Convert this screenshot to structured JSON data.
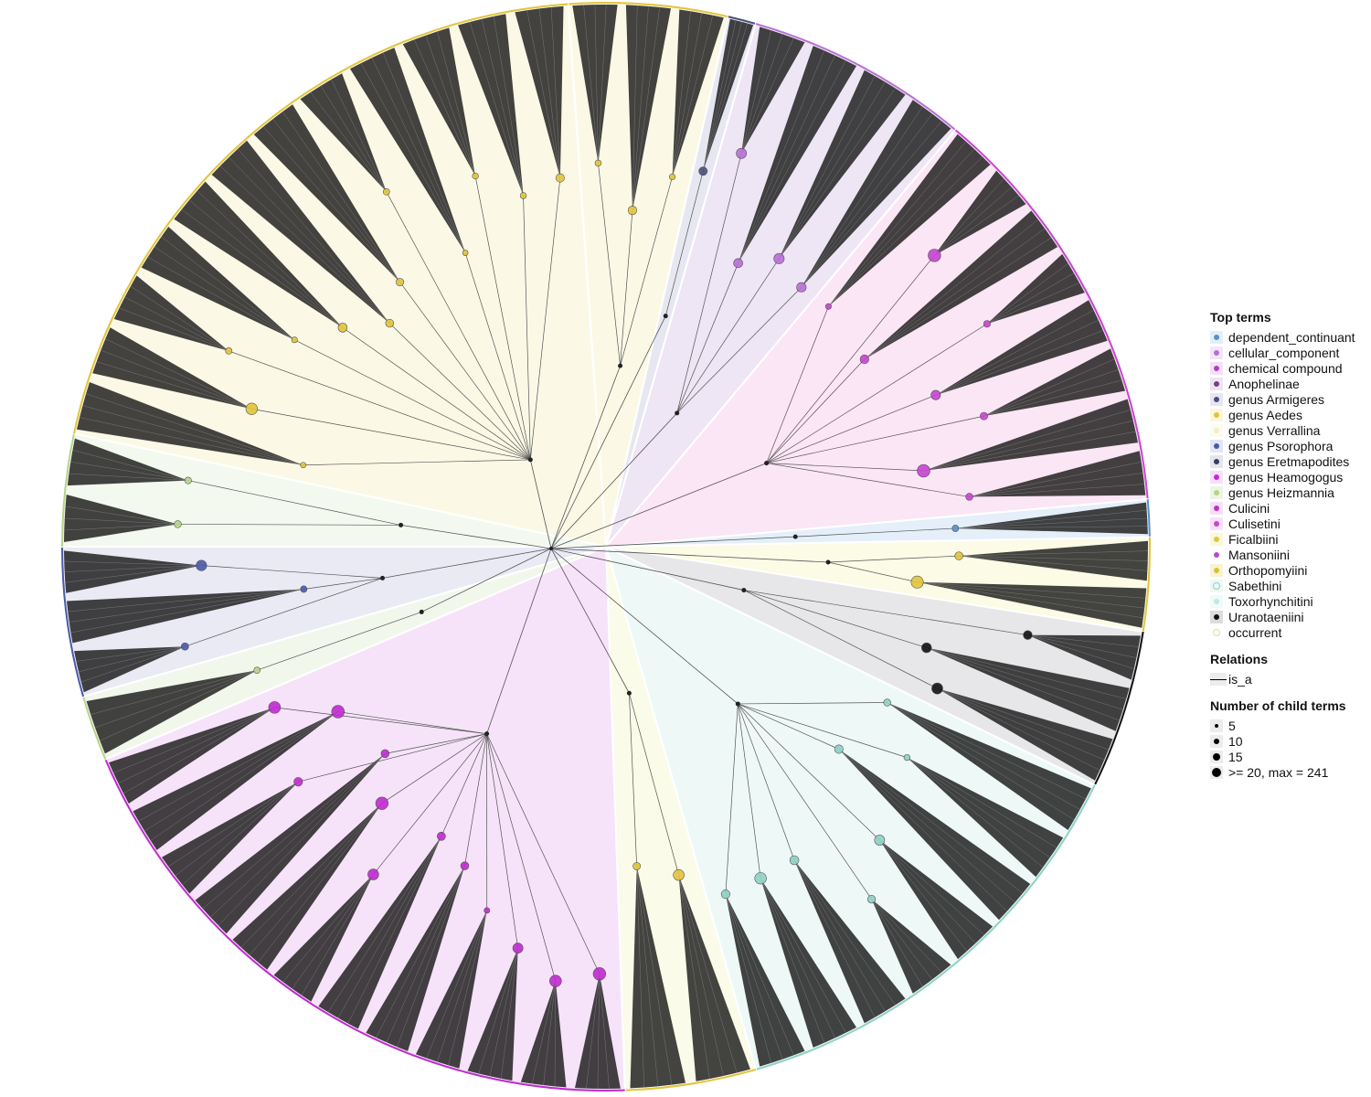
{
  "legend": {
    "top_terms_title": "Top terms",
    "top_terms": [
      {
        "label": "dependent_continuant",
        "color": "#5b8fc7",
        "fill": "#e3eef9",
        "icon": "dot"
      },
      {
        "label": "cellular_component",
        "color": "#b86fd6",
        "fill": "#f2e6f7",
        "icon": "dot"
      },
      {
        "label": "chemical compound",
        "color": "#b43fc4",
        "fill": "#f4e1f5",
        "icon": "dot"
      },
      {
        "label": "Anophelinae",
        "color": "#7a3f80",
        "fill": "#ece4f1",
        "icon": "dot"
      },
      {
        "label": "genus Armigeres",
        "color": "#4c4f7d",
        "fill": "#e6e7f1",
        "icon": "dot"
      },
      {
        "label": "genus Aedes",
        "color": "#e2c43a",
        "fill": "#fbf7dc",
        "icon": "dot"
      },
      {
        "label": "genus Verrallina",
        "color": "#eef0c9",
        "fill": "#fbfbf0",
        "icon": "dot"
      },
      {
        "label": "genus Psorophora",
        "color": "#4a5aa8",
        "fill": "#e4e6f4",
        "icon": "dot"
      },
      {
        "label": "genus Eretmapodites",
        "color": "#3a3d5e",
        "fill": "#e5e5ec",
        "icon": "dot"
      },
      {
        "label": "genus Heamogogus",
        "color": "#c02bd0",
        "fill": "#f6e0f8",
        "icon": "dot"
      },
      {
        "label": "genus Heizmannia",
        "color": "#b7d38a",
        "fill": "#eef4e4",
        "icon": "dot"
      },
      {
        "label": "Culicini",
        "color": "#c12fca",
        "fill": "#f4e1f6",
        "icon": "dot"
      },
      {
        "label": "Culisetini",
        "color": "#c944d3",
        "fill": "#f8e0f8",
        "icon": "dot"
      },
      {
        "label": "Ficalbiini",
        "color": "#d8c93f",
        "fill": "#f9f7dd",
        "icon": "dot"
      },
      {
        "label": "Mansoniini",
        "color": "#b54bc8",
        "fill": "#ffffff",
        "icon": "dot"
      },
      {
        "label": "Orthopomyiini",
        "color": "#d8c230",
        "fill": "#f7f3d6",
        "icon": "dot"
      },
      {
        "label": "Sabethini",
        "color": "#8fd1c5",
        "fill": "#eef8f5",
        "icon": "ring"
      },
      {
        "label": "Toxorhynchitini",
        "color": "#b9ebe2",
        "fill": "#f0faf8",
        "icon": "dot"
      },
      {
        "label": "Uranotaeniini",
        "color": "#111111",
        "fill": "#dcdcdc",
        "icon": "dot"
      },
      {
        "label": "occurrent",
        "color": "#e6dc8f",
        "fill": "#ffffff",
        "icon": "ring"
      }
    ],
    "relations_title": "Relations",
    "relations": [
      {
        "label": "is_a"
      }
    ],
    "size_title": "Number of child terms",
    "sizes": [
      {
        "label": "5",
        "size": 4
      },
      {
        "label": "10",
        "size": 6
      },
      {
        "label": "15",
        "size": 8
      },
      {
        "label": ">= 20, max = 241",
        "size": 10
      }
    ]
  },
  "diagram": {
    "type": "circular ontology tree",
    "sectors": [
      {
        "start": -94,
        "end": -77,
        "fill": "#fbf9e6",
        "edge": "#e2c43a"
      },
      {
        "start": -77,
        "end": -74,
        "fill": "#e6e7f1",
        "edge": "#4c4f7d"
      },
      {
        "start": -74,
        "end": -50,
        "fill": "#eee5f5",
        "edge": "#b86fd6"
      },
      {
        "start": -50,
        "end": -5,
        "fill": "#fbe6f5",
        "edge": "#c944d3"
      },
      {
        "start": -5,
        "end": -1,
        "fill": "#e4effa",
        "edge": "#5b8fc7"
      },
      {
        "start": -1,
        "end": 9,
        "fill": "#fbfbe6",
        "edge": "#e2c43a"
      },
      {
        "start": 9,
        "end": 26,
        "fill": "#e7e7ea",
        "edge": "#111111"
      },
      {
        "start": 26,
        "end": 74,
        "fill": "#eef9f7",
        "edge": "#8fd1c5"
      },
      {
        "start": 74,
        "end": 88,
        "fill": "#fbfbe9",
        "edge": "#e2c43a"
      },
      {
        "start": 88,
        "end": 157,
        "fill": "#f6e3f9",
        "edge": "#c02bd0"
      },
      {
        "start": 157,
        "end": 164,
        "fill": "#f2f7ec",
        "edge": "#b7d38a"
      },
      {
        "start": 164,
        "end": 180,
        "fill": "#eaeaf5",
        "edge": "#4a5aa8"
      },
      {
        "start": 180,
        "end": 192,
        "fill": "#f3f9ee",
        "edge": "#b7d38a"
      },
      {
        "start": 192,
        "end": 266,
        "fill": "#fbf9e6",
        "edge": "#e2c43a"
      }
    ]
  }
}
